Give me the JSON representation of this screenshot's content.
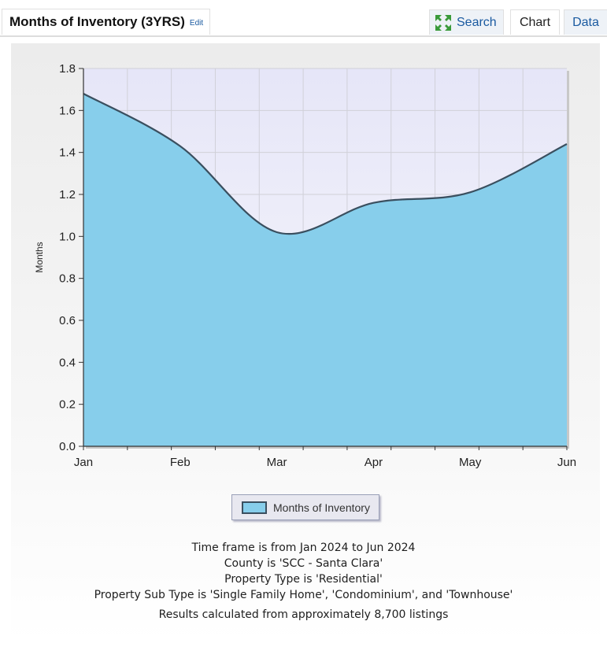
{
  "header": {
    "title": "Months of Inventory (3YRS)",
    "edit_label": "Edit",
    "tabs": [
      {
        "label": "Search",
        "icon": "expand-arrows-icon",
        "active": false
      },
      {
        "label": "Chart",
        "active": true
      },
      {
        "label": "Data",
        "active": false
      }
    ]
  },
  "chart_data": {
    "type": "area",
    "categories": [
      "Jan",
      "Feb",
      "Mar",
      "Apr",
      "May",
      "Jun"
    ],
    "series": [
      {
        "name": "Months of Inventory",
        "values": [
          1.68,
          1.43,
          1.02,
          1.16,
          1.21,
          1.44
        ]
      }
    ],
    "title": "",
    "xlabel": "",
    "ylabel": "Months",
    "ylim": [
      0,
      1.8
    ],
    "yticks": [
      "0.0",
      "0.2",
      "0.4",
      "0.6",
      "0.8",
      "1.0",
      "1.2",
      "1.4",
      "1.6",
      "1.8"
    ],
    "grid": true,
    "legend": "bottom-center",
    "colors": {
      "fill": "#87ceeb",
      "line": "#3a4f5f",
      "plot_bg": "#ececfa"
    }
  },
  "notes": [
    "Time frame is from Jan 2024 to Jun 2024",
    "County is 'SCC - Santa Clara'",
    "Property Type is 'Residential'",
    "Property Sub Type is 'Single Family Home', 'Condominium', and 'Townhouse'",
    "Results calculated from approximately 8,700 listings"
  ]
}
